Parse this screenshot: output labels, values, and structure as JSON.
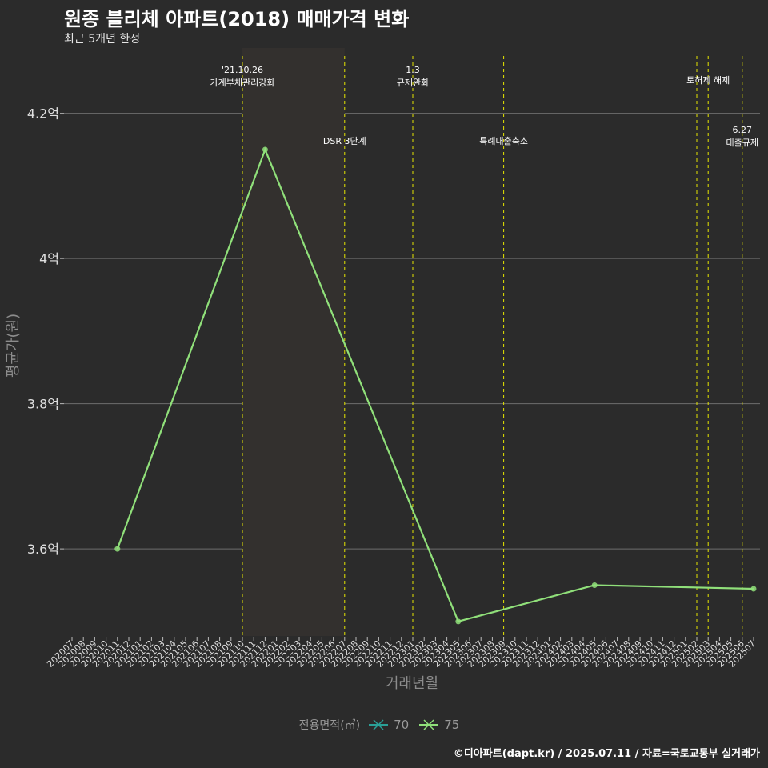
{
  "header": {
    "title": "원종 블리체 아파트(2018) 매매가격 변화",
    "subtitle": "최근 5개년 한정"
  },
  "footer": {
    "credit": "©디아파트(dapt.kr) / 2025.07.11 / 자료=국토교통부 실거래가"
  },
  "legend": {
    "title": "전용면적(㎡)",
    "items": [
      {
        "label": "70",
        "color": "#2aa198"
      },
      {
        "label": "75",
        "color": "#90e07a"
      }
    ]
  },
  "chart_data": {
    "type": "line",
    "xlabel": "거래년월",
    "ylabel": "평균가(원)",
    "categories": [
      "202007",
      "202008",
      "202009",
      "202010",
      "202011",
      "202012",
      "202101",
      "202102",
      "202103",
      "202104",
      "202105",
      "202106",
      "202107",
      "202108",
      "202109",
      "202110",
      "202111",
      "202112",
      "202201",
      "202202",
      "202203",
      "202204",
      "202205",
      "202206",
      "202207",
      "202208",
      "202209",
      "202210",
      "202211",
      "202212",
      "202301",
      "202302",
      "202303",
      "202304",
      "202305",
      "202306",
      "202307",
      "202308",
      "202309",
      "202310",
      "202311",
      "202312",
      "202401",
      "202402",
      "202403",
      "202404",
      "202405",
      "202406",
      "202407",
      "202408",
      "202409",
      "202410",
      "202411",
      "202412",
      "202501",
      "202502",
      "202503",
      "202504",
      "202505",
      "202506",
      "202507"
    ],
    "ylim": [
      3.48,
      4.29
    ],
    "yticks": [
      3.6,
      3.8,
      4.0,
      4.2
    ],
    "ytick_labels": [
      "3.6억",
      "3.8억",
      "4억",
      "4.2억"
    ],
    "grid": true,
    "legend_position": "bottom",
    "series": [
      {
        "name": "75",
        "color": "#90e07a",
        "points": [
          {
            "x": "202011",
            "y": 3.6
          },
          {
            "x": "202112",
            "y": 4.15
          },
          {
            "x": "202305",
            "y": 3.5
          },
          {
            "x": "202405",
            "y": 3.55
          },
          {
            "x": "202507",
            "y": 3.545
          }
        ]
      }
    ],
    "annotations": [
      {
        "x": "202110",
        "lines": [
          "'21.10.26",
          "가계부채관리강화"
        ],
        "row": 0
      },
      {
        "x": "202207",
        "lines": [
          "DSR 3단계"
        ],
        "row": 2
      },
      {
        "x": "202301",
        "lines": [
          "1.3",
          "규제완화"
        ],
        "row": 0
      },
      {
        "x": "202309",
        "lines": [
          "특례대출축소"
        ],
        "row": 2
      },
      {
        "x": "202502",
        "lines": [],
        "row": 1
      },
      {
        "x": "202503",
        "lines": [
          "토허제 해제"
        ],
        "row": 1
      },
      {
        "x": "202506",
        "lines": [
          "6.27",
          "대출규제"
        ],
        "row": 3
      }
    ]
  }
}
